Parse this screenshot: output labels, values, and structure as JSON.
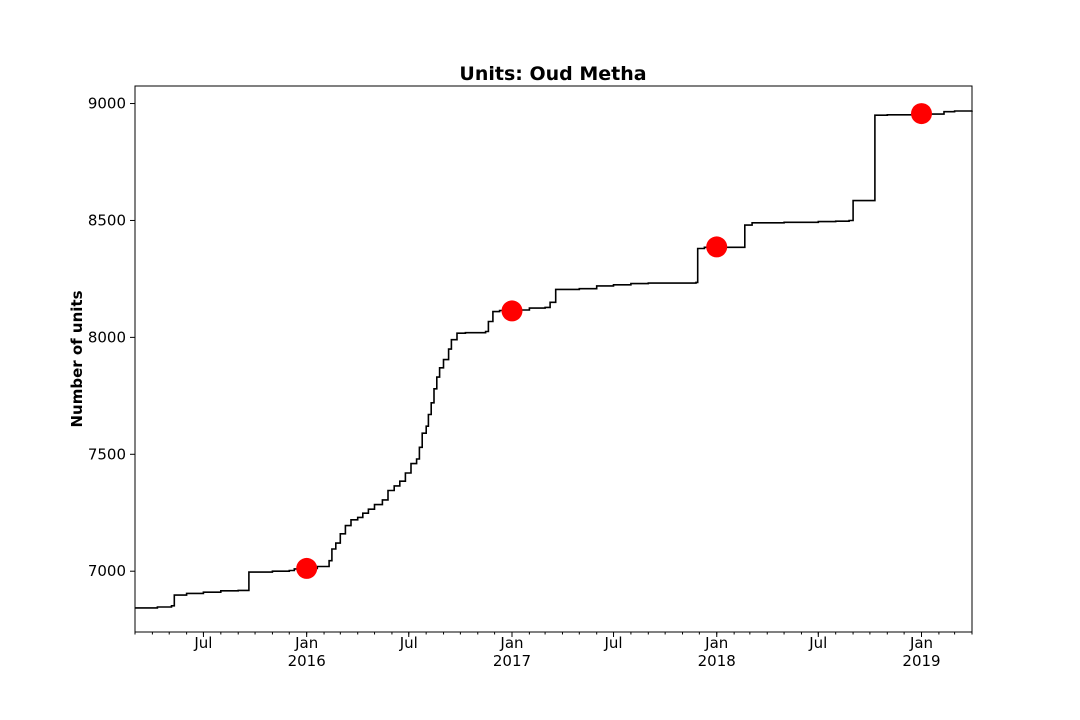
{
  "chart_data": {
    "type": "line",
    "title": "Units: Oud Metha",
    "xlabel": "",
    "ylabel": "Number of units",
    "xlim": [
      "2015-03-01",
      "2019-04-01"
    ],
    "ylim": [
      6740,
      9075
    ],
    "grid": false,
    "yticks": [
      7000,
      7500,
      8000,
      8500,
      9000
    ],
    "xticks": [
      {
        "date": "2015-07-01",
        "label": "Jul",
        "sublabel": ""
      },
      {
        "date": "2016-01-01",
        "label": "Jan",
        "sublabel": "2016"
      },
      {
        "date": "2016-07-01",
        "label": "Jul",
        "sublabel": ""
      },
      {
        "date": "2017-01-01",
        "label": "Jan",
        "sublabel": "2017"
      },
      {
        "date": "2017-07-01",
        "label": "Jul",
        "sublabel": ""
      },
      {
        "date": "2018-01-01",
        "label": "Jan",
        "sublabel": "2018"
      },
      {
        "date": "2018-07-01",
        "label": "Jul",
        "sublabel": ""
      },
      {
        "date": "2019-01-01",
        "label": "Jan",
        "sublabel": "2019"
      }
    ],
    "series": [
      {
        "type": "step",
        "color": "#000000",
        "points": [
          [
            "2015-03-01",
            6843
          ],
          [
            "2015-04-10",
            6847
          ],
          [
            "2015-05-05",
            6852
          ],
          [
            "2015-05-10",
            6898
          ],
          [
            "2015-06-01",
            6905
          ],
          [
            "2015-07-01",
            6910
          ],
          [
            "2015-08-01",
            6916
          ],
          [
            "2015-09-01",
            6918
          ],
          [
            "2015-09-20",
            6996
          ],
          [
            "2015-11-01",
            7000
          ],
          [
            "2015-12-01",
            7003
          ],
          [
            "2015-12-10",
            7010
          ],
          [
            "2016-01-01",
            7012
          ],
          [
            "2016-01-20",
            7020
          ],
          [
            "2016-02-10",
            7045
          ],
          [
            "2016-02-15",
            7095
          ],
          [
            "2016-02-22",
            7120
          ],
          [
            "2016-03-01",
            7160
          ],
          [
            "2016-03-10",
            7195
          ],
          [
            "2016-03-20",
            7220
          ],
          [
            "2016-04-01",
            7230
          ],
          [
            "2016-04-10",
            7248
          ],
          [
            "2016-04-20",
            7265
          ],
          [
            "2016-05-01",
            7285
          ],
          [
            "2016-05-15",
            7305
          ],
          [
            "2016-05-25",
            7345
          ],
          [
            "2016-06-05",
            7365
          ],
          [
            "2016-06-15",
            7385
          ],
          [
            "2016-06-25",
            7420
          ],
          [
            "2016-07-05",
            7460
          ],
          [
            "2016-07-15",
            7480
          ],
          [
            "2016-07-20",
            7530
          ],
          [
            "2016-07-25",
            7590
          ],
          [
            "2016-08-01",
            7620
          ],
          [
            "2016-08-05",
            7670
          ],
          [
            "2016-08-10",
            7720
          ],
          [
            "2016-08-15",
            7780
          ],
          [
            "2016-08-20",
            7830
          ],
          [
            "2016-08-25",
            7870
          ],
          [
            "2016-09-01",
            7905
          ],
          [
            "2016-09-10",
            7950
          ],
          [
            "2016-09-15",
            7990
          ],
          [
            "2016-09-25",
            8018
          ],
          [
            "2016-10-10",
            8020
          ],
          [
            "2016-11-15",
            8025
          ],
          [
            "2016-11-20",
            8068
          ],
          [
            "2016-11-28",
            8110
          ],
          [
            "2016-12-10",
            8115
          ],
          [
            "2017-01-01",
            8117
          ],
          [
            "2017-02-01",
            8125
          ],
          [
            "2017-03-01",
            8128
          ],
          [
            "2017-03-10",
            8150
          ],
          [
            "2017-03-20",
            8205
          ],
          [
            "2017-05-01",
            8208
          ],
          [
            "2017-06-01",
            8220
          ],
          [
            "2017-07-01",
            8225
          ],
          [
            "2017-08-01",
            8230
          ],
          [
            "2017-09-01",
            8232
          ],
          [
            "2017-11-25",
            8235
          ],
          [
            "2017-11-28",
            8380
          ],
          [
            "2017-12-10",
            8385
          ],
          [
            "2018-02-20",
            8480
          ],
          [
            "2018-03-05",
            8490
          ],
          [
            "2018-05-01",
            8492
          ],
          [
            "2018-07-01",
            8495
          ],
          [
            "2018-08-01",
            8497
          ],
          [
            "2018-08-25",
            8500
          ],
          [
            "2018-09-01",
            8585
          ],
          [
            "2018-10-10",
            8950
          ],
          [
            "2018-11-01",
            8952
          ],
          [
            "2019-01-01",
            8955
          ],
          [
            "2019-02-10",
            8965
          ],
          [
            "2019-03-01",
            8968
          ],
          [
            "2019-04-01",
            8970
          ]
        ]
      },
      {
        "type": "scatter",
        "color": "#ff0000",
        "points": [
          [
            "2016-01-01",
            7012
          ],
          [
            "2017-01-01",
            8113
          ],
          [
            "2018-01-01",
            8387
          ],
          [
            "2019-01-01",
            8957
          ]
        ]
      }
    ]
  }
}
